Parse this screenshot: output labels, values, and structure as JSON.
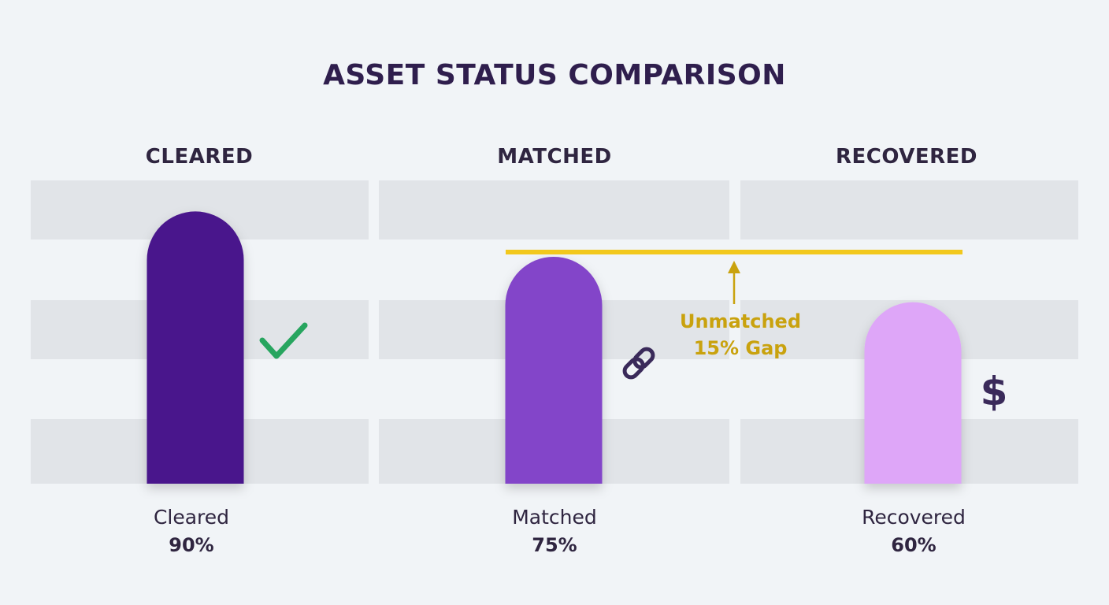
{
  "colors": {
    "background": "#f1f4f7",
    "band": "#e1e4e8",
    "bar_cleared": "#4a168c",
    "bar_matched": "#8344c9",
    "bar_recovered": "#dea6f8",
    "target_line": "#f2c81d",
    "gap_text": "#c9a20e",
    "check": "#27a55f",
    "icon_dark": "#3a2a5a"
  },
  "chart_data": {
    "type": "bar",
    "title": "ASSET STATUS COMPARISON",
    "column_headers": [
      "CLEARED",
      "MATCHED",
      "RECOVERED"
    ],
    "categories": [
      "Cleared",
      "Matched",
      "Recovered"
    ],
    "values": [
      90,
      75,
      60
    ],
    "value_labels": [
      "90%",
      "75%",
      "60%"
    ],
    "icons": [
      "check-icon",
      "link-icon",
      "dollar-icon"
    ],
    "dollar_symbol": "$",
    "ylim": [
      0,
      100
    ],
    "target_line": 75,
    "annotation": {
      "line1": "Unmatched",
      "line2": "15% Gap"
    },
    "grid": "horizontal-bands",
    "legend": "none"
  }
}
